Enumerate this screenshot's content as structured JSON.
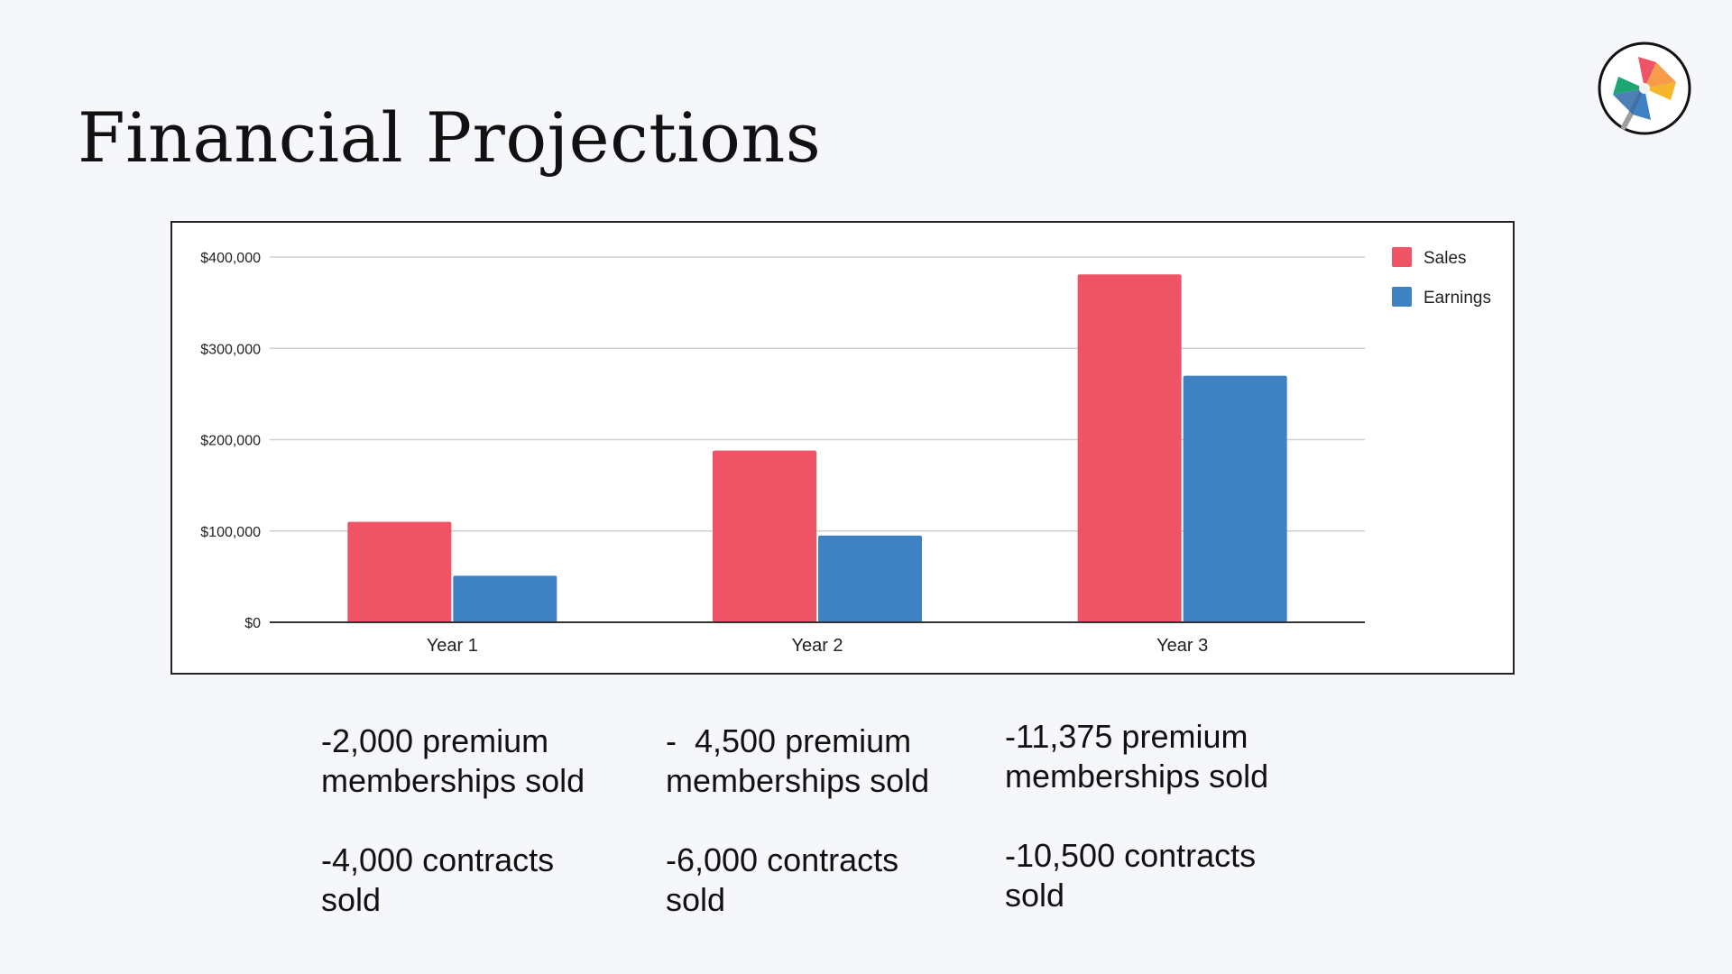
{
  "slide": {
    "title": "Financial Projections",
    "logo_icon": "pinwheel-logo-icon"
  },
  "chart_data": {
    "type": "bar",
    "categories": [
      "Year 1",
      "Year 2",
      "Year 3"
    ],
    "series": [
      {
        "name": "Sales",
        "color": "#ef5466",
        "values": [
          110000,
          188000,
          381000
        ]
      },
      {
        "name": "Earnings",
        "color": "#3f82c4",
        "values": [
          51000,
          95000,
          270000
        ]
      }
    ],
    "ylim": [
      0,
      400000
    ],
    "yticks": [
      0,
      100000,
      200000,
      300000,
      400000
    ],
    "ytick_labels": [
      "$0",
      "$100,000",
      "$200,000",
      "$300,000",
      "$400,000"
    ],
    "grid": true,
    "legend_position": "top-right"
  },
  "notes": [
    {
      "memberships": "-2,000 premium\nmemberships sold",
      "contracts": "-4,000 contracts\nsold"
    },
    {
      "memberships": "-  4,500 premium\nmemberships sold",
      "contracts": "-6,000 contracts\nsold"
    },
    {
      "memberships": "-11,375 premium\nmemberships sold",
      "contracts": "-10,500 contracts\nsold"
    }
  ]
}
